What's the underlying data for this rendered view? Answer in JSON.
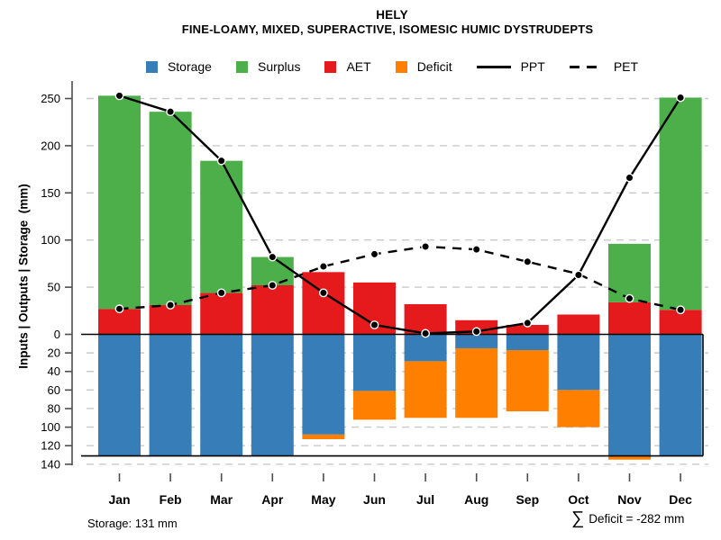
{
  "header": {
    "title": "HELY",
    "subtitle": "FINE-LOAMY, MIXED, SUPERACTIVE, ISOMESIC HUMIC DYSTRUDEPTS"
  },
  "legend": {
    "items": [
      {
        "label": "Storage",
        "swatch": "square",
        "color": "#377EB8"
      },
      {
        "label": "Surplus",
        "swatch": "square",
        "color": "#4DAF4A"
      },
      {
        "label": "AET",
        "swatch": "square",
        "color": "#E41A1C"
      },
      {
        "label": "Deficit",
        "swatch": "square",
        "color": "#FF7F00"
      },
      {
        "label": "PPT",
        "swatch": "solid-line",
        "color": "#000000"
      },
      {
        "label": "PET",
        "swatch": "dashed-line",
        "color": "#000000"
      }
    ]
  },
  "axes": {
    "ylabel": "Inputs | Outputs | Storage  (mm)",
    "upper_ticks": [
      0,
      50,
      100,
      150,
      200,
      250
    ],
    "lower_ticks": [
      20,
      40,
      60,
      80,
      100,
      120,
      140
    ],
    "upper_ylim": [
      0,
      260
    ],
    "lower_ylim": [
      0,
      140
    ],
    "lower_frame_value": 131,
    "grid": true,
    "grid_color": "#c9c9c9",
    "axis_color": "#4d4d4d"
  },
  "chart_data": {
    "type": "bar",
    "subtype": "mirrored water-balance with line overlays",
    "categories": [
      "Jan",
      "Feb",
      "Mar",
      "Apr",
      "May",
      "Jun",
      "Jul",
      "Aug",
      "Sep",
      "Oct",
      "Nov",
      "Dec"
    ],
    "series": [
      {
        "name": "AET",
        "type": "bar",
        "panel": "upper",
        "color": "#E41A1C",
        "values": [
          27,
          31,
          44,
          52,
          66,
          55,
          32,
          15,
          10,
          21,
          34,
          26
        ]
      },
      {
        "name": "Surplus",
        "type": "bar",
        "panel": "upper",
        "stacked_on": "AET",
        "color": "#4DAF4A",
        "values": [
          226,
          205,
          140,
          30,
          0,
          0,
          0,
          0,
          0,
          0,
          62,
          225
        ]
      },
      {
        "name": "Storage",
        "type": "bar",
        "panel": "lower",
        "color": "#377EB8",
        "values": [
          131,
          131,
          131,
          131,
          108,
          61,
          29,
          15,
          17,
          60,
          131,
          131
        ]
      },
      {
        "name": "Deficit",
        "type": "bar",
        "panel": "lower",
        "stacked_on": "Storage",
        "color": "#FF7F00",
        "values": [
          0,
          0,
          0,
          0,
          5,
          31,
          61,
          75,
          66,
          40,
          4,
          0
        ]
      },
      {
        "name": "PPT",
        "type": "line",
        "style": "solid",
        "color": "#000000",
        "values": [
          253,
          236,
          184,
          82,
          44,
          10,
          1,
          3,
          12,
          63,
          166,
          251
        ]
      },
      {
        "name": "PET",
        "type": "line",
        "style": "dashed",
        "color": "#000000",
        "values": [
          27,
          31,
          44,
          52,
          72,
          85,
          93,
          90,
          77,
          64,
          38,
          26
        ]
      }
    ],
    "title": "HELY",
    "xlabel": "",
    "legend_position": "top"
  },
  "footer": {
    "storage_note": "Storage: 131 mm",
    "sum_symbol": "∑",
    "deficit_note": "Deficit = -282 mm"
  }
}
